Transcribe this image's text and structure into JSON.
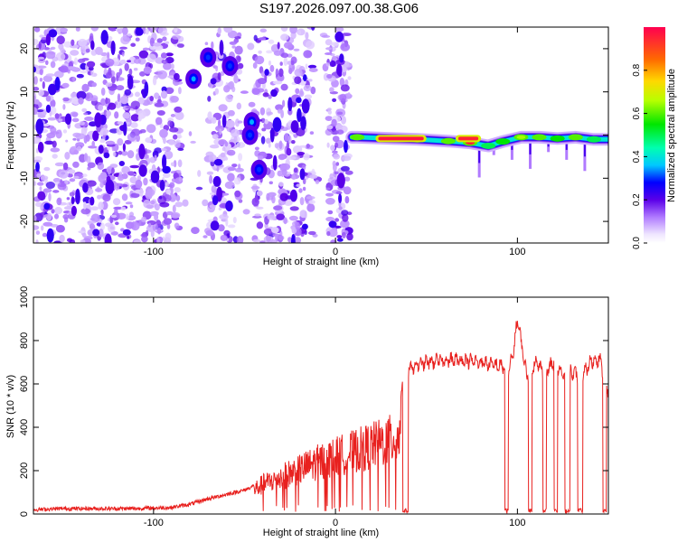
{
  "title": "S197.2026.097.00.38.G06",
  "chart_data": [
    {
      "type": "heatmap",
      "title": "",
      "xlabel": "Height of straight line (km)",
      "ylabel": "Frequency (Hz)",
      "xlim": [
        -166,
        150
      ],
      "ylim": [
        -25,
        25
      ],
      "xticks": [
        -100,
        0,
        100
      ],
      "xtick_labels": [
        "-100",
        "0",
        "100"
      ],
      "yticks": [
        20,
        10,
        0,
        -10,
        -20
      ],
      "ytick_labels": [
        "20",
        "10",
        "0",
        "-10",
        "-20"
      ],
      "colorbar": {
        "label": "Normalized spectral amplitude",
        "range": [
          0.0,
          1.0
        ],
        "ticks": [
          0.0,
          0.2,
          0.4,
          0.6,
          0.8
        ],
        "tick_labels": [
          "0.0",
          "0.2",
          "0.4",
          "0.6",
          "0.8"
        ]
      },
      "noise_region_km": [
        -166,
        8
      ],
      "blank_bands_km": [
        [
          -85,
          -70
        ],
        [
          -52,
          -45
        ],
        [
          -12,
          -4
        ]
      ],
      "spectral_line": [
        {
          "x": 12,
          "freq": -0.5,
          "amp": 0.6
        },
        {
          "x": 30,
          "freq": -0.8,
          "amp": 0.97
        },
        {
          "x": 45,
          "freq": -1.0,
          "amp": 0.85
        },
        {
          "x": 62,
          "freq": -1.4,
          "amp": 0.6
        },
        {
          "x": 74,
          "freq": -1.8,
          "amp": 0.95
        },
        {
          "x": 84,
          "freq": -2.5,
          "amp": 0.5
        },
        {
          "x": 92,
          "freq": -1.5,
          "amp": 0.55
        },
        {
          "x": 102,
          "freq": -0.5,
          "amp": 0.65
        },
        {
          "x": 112,
          "freq": -0.5,
          "amp": 0.6
        },
        {
          "x": 122,
          "freq": -0.8,
          "amp": 0.55
        },
        {
          "x": 132,
          "freq": -0.5,
          "amp": 0.6
        },
        {
          "x": 142,
          "freq": -1.0,
          "amp": 0.5
        }
      ],
      "isolated_peaks": [
        {
          "x": -78,
          "freq": 13,
          "amp": 0.35
        },
        {
          "x": -70,
          "freq": 18,
          "amp": 0.3
        },
        {
          "x": -58,
          "freq": 16,
          "amp": 0.3
        },
        {
          "x": -46,
          "freq": 3,
          "amp": 0.35
        },
        {
          "x": -47,
          "freq": 0,
          "amp": 0.3
        },
        {
          "x": -42,
          "freq": -8,
          "amp": 0.3
        }
      ]
    },
    {
      "type": "line",
      "title": "",
      "xlabel": "Height of straight line (km)",
      "ylabel": "SNR (10 * v/v)",
      "xlim": [
        -166,
        150
      ],
      "ylim": [
        0,
        1000
      ],
      "xticks": [
        -100,
        0,
        100
      ],
      "xtick_labels": [
        "-100",
        "0",
        "100"
      ],
      "yticks": [
        0,
        200,
        400,
        600,
        800,
        1000
      ],
      "ytick_labels": [
        "0",
        "200",
        "400",
        "600",
        "800",
        "1000"
      ],
      "series": [
        {
          "name": "SNR",
          "color": "#e8211f",
          "x": [
            -166,
            -150,
            -130,
            -110,
            -90,
            -80,
            -70,
            -60,
            -50,
            -45,
            -40,
            -35,
            -30,
            -20,
            -10,
            0,
            10,
            20,
            30,
            35,
            37,
            40,
            50,
            60,
            70,
            80,
            85,
            93,
            95,
            98,
            100,
            102,
            105,
            110,
            115,
            120,
            125,
            130,
            135,
            140,
            145,
            150
          ],
          "y": [
            20,
            25,
            25,
            25,
            30,
            45,
            70,
            90,
            110,
            130,
            160,
            180,
            200,
            240,
            280,
            310,
            340,
            370,
            400,
            420,
            620,
            670,
            700,
            710,
            710,
            700,
            690,
            680,
            640,
            760,
            900,
            800,
            640,
            700,
            650,
            700,
            640,
            660,
            620,
            700,
            720,
            560
          ]
        }
      ],
      "dropouts_km": [
        [
          37,
          40
        ],
        [
          93,
          95
        ],
        [
          106,
          108
        ],
        [
          114,
          116
        ],
        [
          120,
          122
        ],
        [
          126,
          129
        ],
        [
          133,
          136
        ],
        [
          147,
          149
        ]
      ]
    }
  ],
  "colors": {
    "line": "#e8211f",
    "axis": "#000000"
  }
}
